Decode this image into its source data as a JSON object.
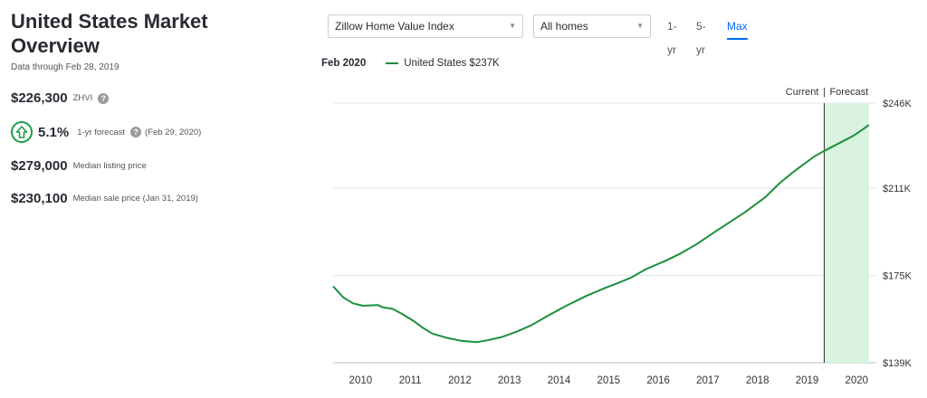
{
  "overview": {
    "title_line1": "United States Market",
    "title_line2": "Overview",
    "data_through": "Data through Feb 28, 2019",
    "zhvi_value": "$226,300",
    "zhvi_label": "ZHVI",
    "forecast_pct": "5.1%",
    "forecast_label": "1-yr forecast",
    "forecast_date": "(Feb 29, 2020)",
    "median_listing_value": "$279,000",
    "median_listing_label": "Median listing price",
    "median_sale_value": "$230,100",
    "median_sale_label": "Median sale price (Jan 31, 2019)"
  },
  "controls": {
    "index_select": "Zillow Home Value Index",
    "homes_select": "All homes",
    "range_options": [
      "1-yr",
      "5-yr",
      "Max"
    ],
    "active_range": "Max"
  },
  "legend": {
    "date": "Feb 2020",
    "series": "United States $237K"
  },
  "chart_data": {
    "type": "line",
    "current_label": "Current",
    "forecast_label": "Forecast",
    "y_tick_labels": [
      "$246K",
      "$211K",
      "$175K",
      "$139K"
    ],
    "y_tick_values": [
      246,
      211,
      175,
      139
    ],
    "x_tick_labels": [
      "2010",
      "2011",
      "2012",
      "2013",
      "2014",
      "2015",
      "2016",
      "2017",
      "2018",
      "2019",
      "2020"
    ],
    "x_tick_values": [
      2010,
      2011,
      2012,
      2013,
      2014,
      2015,
      2016,
      2017,
      2018,
      2019,
      2020
    ],
    "ylim": [
      139,
      246
    ],
    "xlim": [
      2009.3,
      2020.25
    ],
    "forecast_range": [
      2019.2,
      2020.1
    ],
    "grid": true,
    "series": [
      {
        "color": "#1d8f3f",
        "x": [
          2009.3,
          2009.5,
          2009.7,
          2009.9,
          2010.2,
          2010.3,
          2010.5,
          2010.7,
          2010.9,
          2011.1,
          2011.3,
          2011.6,
          2011.9,
          2012.2,
          2012.4,
          2012.7,
          2013.0,
          2013.3,
          2013.6,
          2014.0,
          2014.4,
          2014.8,
          2015.0,
          2015.3,
          2015.6,
          2016.0,
          2016.3,
          2016.6,
          2017.0,
          2017.3,
          2017.6,
          2018.0,
          2018.3,
          2018.6,
          2019.0,
          2019.2,
          2019.5,
          2019.8,
          2020.0,
          2020.1
        ],
        "y": [
          170.5,
          166,
          163.5,
          162.5,
          162.8,
          161.8,
          161.2,
          159,
          156.5,
          153.5,
          151,
          149.2,
          148,
          147.5,
          148.2,
          149.6,
          151.8,
          154.5,
          158,
          162.5,
          166.5,
          170,
          171.5,
          174,
          177.5,
          181,
          184,
          187.5,
          193,
          197,
          201,
          207,
          213,
          218,
          224,
          226.3,
          229.5,
          232.7,
          235.5,
          237
        ]
      }
    ]
  }
}
